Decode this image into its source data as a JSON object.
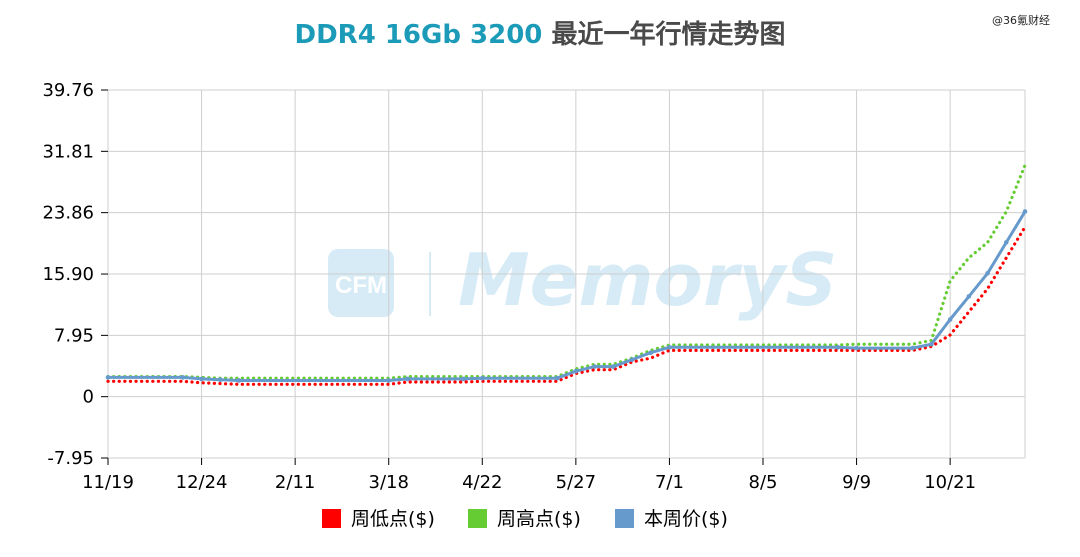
{
  "header": {
    "title_accent": "DDR4 16Gb 3200",
    "title_rest": " 最近一年行情走势图",
    "source": "@36氪财经"
  },
  "watermark": {
    "text": "MemoryS",
    "logo_text": "CFM"
  },
  "colors": {
    "low": "#ff0000",
    "high": "#66cc33",
    "price": "#6699cc",
    "title_accent": "#1b9bb8",
    "grid": "#cfcfcf"
  },
  "chart_data": {
    "type": "line",
    "title": "DDR4 16Gb 3200 最近一年行情走势图",
    "xlabel": "",
    "ylabel": "",
    "ylim": [
      -7.95,
      39.76
    ],
    "yticks": [
      "39.76",
      "31.81",
      "23.86",
      "15.90",
      "7.95",
      "0",
      "-7.95"
    ],
    "ytick_values": [
      39.76,
      31.81,
      23.86,
      15.9,
      7.95,
      0,
      -7.95
    ],
    "xticks": [
      "11/19",
      "12/24",
      "2/11",
      "3/18",
      "4/22",
      "5/27",
      "7/1",
      "8/5",
      "9/9",
      "10/21"
    ],
    "xtick_positions": [
      0,
      5,
      10,
      15,
      20,
      25,
      30,
      35,
      40,
      45
    ],
    "grid": true,
    "legend_position": "bottom-center",
    "series": [
      {
        "name": "周低点($)",
        "style": "dotted",
        "color": "#ff0000",
        "values": [
          2.0,
          2.0,
          2.0,
          2.0,
          2.0,
          1.8,
          1.7,
          1.6,
          1.6,
          1.6,
          1.6,
          1.6,
          1.6,
          1.6,
          1.6,
          1.6,
          1.9,
          1.9,
          1.9,
          1.9,
          2.0,
          2.0,
          2.0,
          2.0,
          2.0,
          3.0,
          3.5,
          3.5,
          4.5,
          5.0,
          6.0,
          6.0,
          6.0,
          6.0,
          6.0,
          6.0,
          6.0,
          6.0,
          6.0,
          6.0,
          6.0,
          6.0,
          6.0,
          6.0,
          6.5,
          8.0,
          11.0,
          14.0,
          18.0,
          22.0
        ]
      },
      {
        "name": "周高点($)",
        "style": "dotted",
        "color": "#66cc33",
        "values": [
          2.6,
          2.6,
          2.6,
          2.6,
          2.6,
          2.5,
          2.4,
          2.4,
          2.4,
          2.4,
          2.4,
          2.4,
          2.4,
          2.4,
          2.4,
          2.4,
          2.6,
          2.6,
          2.6,
          2.6,
          2.6,
          2.6,
          2.6,
          2.6,
          2.6,
          3.6,
          4.2,
          4.2,
          5.0,
          6.0,
          6.7,
          6.7,
          6.7,
          6.7,
          6.7,
          6.7,
          6.7,
          6.7,
          6.7,
          6.7,
          6.8,
          6.8,
          6.8,
          6.8,
          7.3,
          15.0,
          18.0,
          20.0,
          24.0,
          30.0
        ]
      },
      {
        "name": "本周价($)",
        "style": "solid",
        "color": "#6699cc",
        "values": [
          2.5,
          2.5,
          2.5,
          2.5,
          2.5,
          2.3,
          2.2,
          2.1,
          2.1,
          2.1,
          2.1,
          2.1,
          2.1,
          2.1,
          2.1,
          2.1,
          2.3,
          2.3,
          2.3,
          2.3,
          2.4,
          2.4,
          2.4,
          2.4,
          2.4,
          3.3,
          3.9,
          3.9,
          4.8,
          5.7,
          6.4,
          6.4,
          6.4,
          6.4,
          6.4,
          6.4,
          6.4,
          6.4,
          6.4,
          6.4,
          6.3,
          6.3,
          6.3,
          6.3,
          6.8,
          10.0,
          13.0,
          16.0,
          20.0,
          24.0
        ]
      }
    ]
  }
}
